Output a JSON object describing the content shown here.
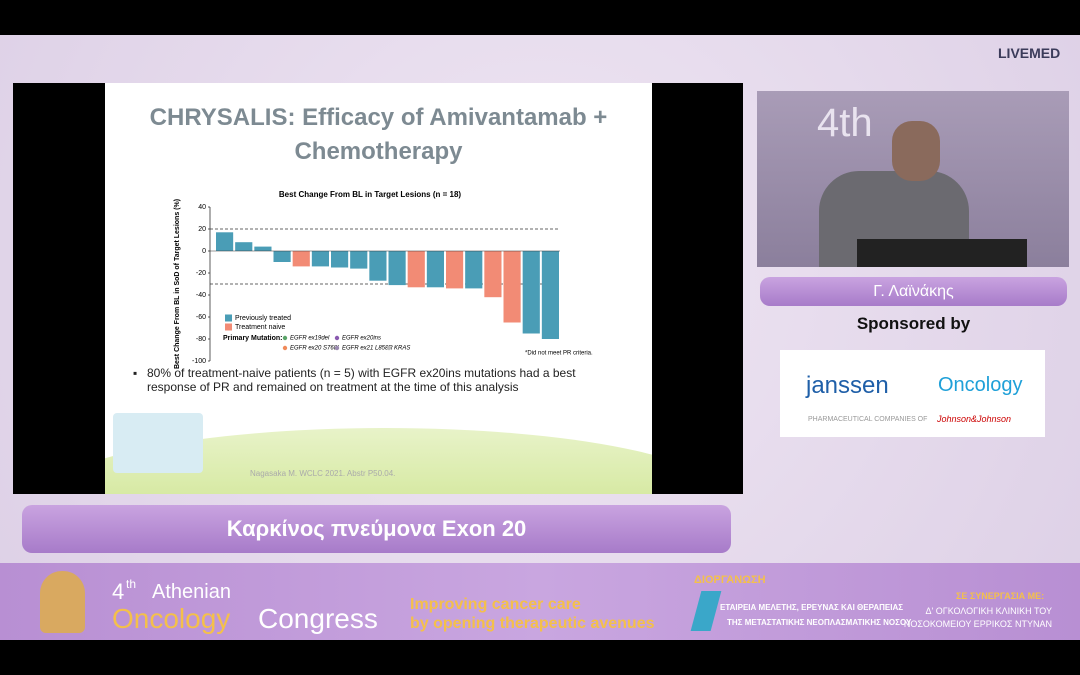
{
  "header": {
    "brand": "LIVEMED"
  },
  "slide": {
    "title": "CHRYSALIS: Efficacy of Amivantamab + Chemotherapy",
    "chart": {
      "type": "bar",
      "title": "Best Change From BL in Target Lesions (n = 18)",
      "y_label": "Best Change From BL in SoD of Target Lesions (%)",
      "series": [
        {
          "name": "Previously treated",
          "color": "#4a9db6",
          "values": [
            17,
            8,
            4,
            -10,
            null,
            -14,
            -15,
            -16,
            -27,
            -31,
            null,
            -33,
            null,
            -34,
            null,
            null,
            -75,
            -80
          ]
        },
        {
          "name": "Treatment naive",
          "color": "#f28b75",
          "values": [
            null,
            null,
            null,
            null,
            -14,
            null,
            null,
            null,
            null,
            null,
            -33,
            null,
            -34,
            null,
            -42,
            -65,
            null,
            null
          ]
        }
      ],
      "ylim": [
        -100,
        40
      ],
      "yticks": [
        40,
        20,
        0,
        -20,
        -40,
        -60,
        -80,
        -100
      ],
      "reference_lines": [
        20,
        -30
      ],
      "mutation_legend_title": "Primary Mutation:",
      "mutation_legend": [
        "EGFR ex19del",
        "EGFR ex20ins",
        "EGFR ex20 S768I",
        "EGFR ex21 L858R",
        "KRAS"
      ],
      "footnote": "*Did not meet PR criteria."
    },
    "bullet": "80% of treatment-naive patients (n = 5) with EGFR ex20ins mutations had a best response of PR and remained on treatment at the time of this analysis",
    "citation": "Nagasaka M. WCLC 2021. Abstr P50.04."
  },
  "speaker": {
    "name": "Γ. Λαϊνάκης",
    "sponsored_by": "Sponsored by",
    "sponsor": "janssen",
    "sponsor_division": "Oncology",
    "sponsor_line": "PHARMACEUTICAL COMPANIES OF",
    "sponsor_parent": "Johnson&Johnson"
  },
  "caption": "Καρκίνος πνεύμονα Exon 20",
  "footer": {
    "number": "4",
    "ordinal": "th",
    "line1": "Athenian",
    "line2a": "Oncology",
    "line2b": "Congress",
    "tagline1": "Improving cancer care",
    "tagline2": "by opening therapeutic avenues",
    "organizer_label": "ΔΙΟΡΓΑΝΩΣΗ",
    "organizer1": "ΕΤΑΙΡΕΙΑ ΜΕΛΕΤΗΣ, ΕΡΕΥΝΑΣ ΚΑΙ ΘΕΡΑΠΕΙΑΣ",
    "organizer2": "ΤΗΣ ΜΕΤΑΣΤΑΤΙΚΗΣ ΝΕΟΠΛΑΣΜΑΤΙΚΗΣ ΝΟΣΟΥ",
    "partner_label": "ΣΕ ΣΥΝΕΡΓΑΣΙΑ ΜΕ:",
    "partner1": "Δ' ΟΓΚΟΛΟΓΙΚΗ ΚΛΙΝΙΚΗ ΤΟΥ",
    "partner2": "ΝΟΣΟΚΟΜΕΙΟΥ ΕΡΡΙΚΟΣ ΝΤΥΝΑΝ"
  }
}
